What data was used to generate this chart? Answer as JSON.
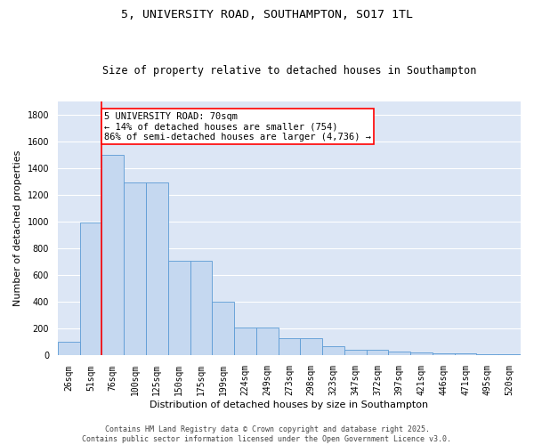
{
  "title": "5, UNIVERSITY ROAD, SOUTHAMPTON, SO17 1TL",
  "subtitle": "Size of property relative to detached houses in Southampton",
  "xlabel": "Distribution of detached houses by size in Southampton",
  "ylabel": "Number of detached properties",
  "categories": [
    "26sqm",
    "51sqm",
    "76sqm",
    "100sqm",
    "125sqm",
    "150sqm",
    "175sqm",
    "199sqm",
    "224sqm",
    "249sqm",
    "273sqm",
    "298sqm",
    "323sqm",
    "347sqm",
    "372sqm",
    "397sqm",
    "421sqm",
    "446sqm",
    "471sqm",
    "495sqm",
    "520sqm"
  ],
  "values": [
    105,
    995,
    1500,
    1290,
    1290,
    705,
    705,
    400,
    210,
    210,
    130,
    130,
    70,
    40,
    40,
    30,
    20,
    15,
    15,
    10,
    10
  ],
  "bar_color": "#c5d8f0",
  "bar_edge_color": "#5b9bd5",
  "vline_color": "red",
  "annotation_text": "5 UNIVERSITY ROAD: 70sqm\n← 14% of detached houses are smaller (754)\n86% of semi-detached houses are larger (4,736) →",
  "annotation_box_color": "white",
  "annotation_box_edge": "red",
  "ylim": [
    0,
    1900
  ],
  "yticks": [
    0,
    200,
    400,
    600,
    800,
    1000,
    1200,
    1400,
    1600,
    1800
  ],
  "background_color": "#dce6f5",
  "grid_color": "white",
  "footer": "Contains HM Land Registry data © Crown copyright and database right 2025.\nContains public sector information licensed under the Open Government Licence v3.0.",
  "title_fontsize": 9.5,
  "subtitle_fontsize": 8.5,
  "xlabel_fontsize": 8,
  "ylabel_fontsize": 8,
  "tick_fontsize": 7,
  "annotation_fontsize": 7.5,
  "footer_fontsize": 6
}
